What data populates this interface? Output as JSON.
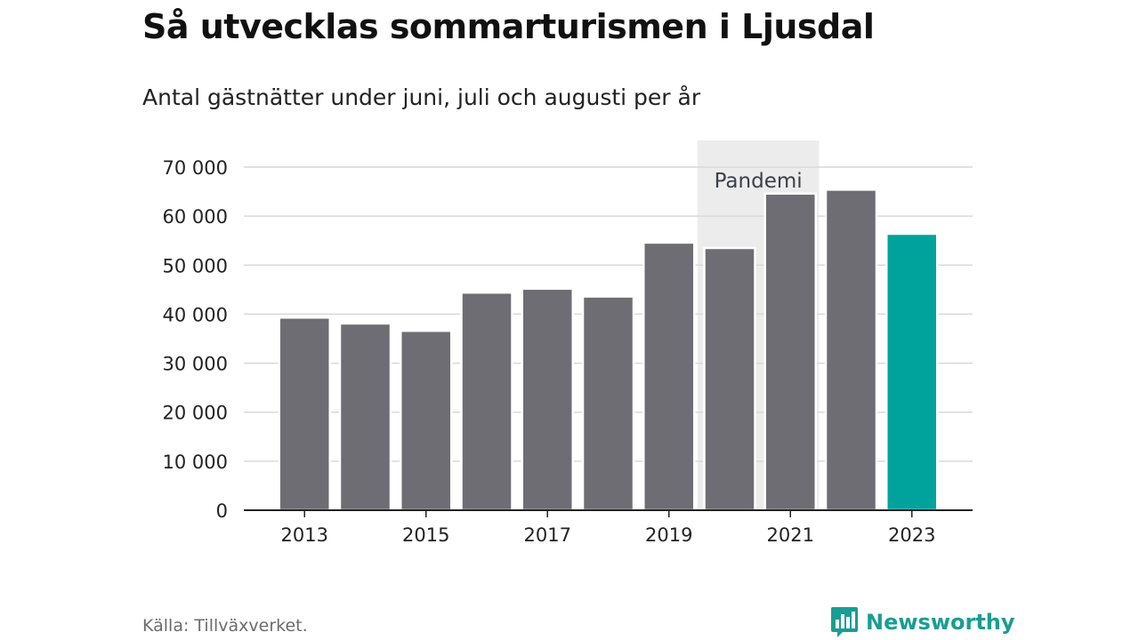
{
  "header": {
    "title": "Så utvecklas sommarturismen i Ljusdal",
    "subtitle": "Antal gästnätter under juni, juli och augusti per år"
  },
  "footer": {
    "source": "Källa: Tillväxverket.",
    "brand": "Newsworthy",
    "brand_icon": "bar-chart-speech-icon"
  },
  "colors": {
    "bar": "#6e6d73",
    "highlight": "#00a39b",
    "band": "#ececec",
    "grid": "#d9d9d9",
    "axis": "#222222"
  },
  "chart_data": {
    "type": "bar",
    "categories": [
      "2013",
      "2014",
      "2015",
      "2016",
      "2017",
      "2018",
      "2019",
      "2020",
      "2021",
      "2022",
      "2023"
    ],
    "values": [
      39300,
      38100,
      36600,
      44400,
      45200,
      43600,
      54600,
      53500,
      64600,
      65400,
      56400
    ],
    "highlight_category": "2023",
    "ylim": [
      0,
      70000
    ],
    "yticks": [
      0,
      10000,
      20000,
      30000,
      40000,
      50000,
      60000,
      70000
    ],
    "ytick_labels": [
      "0",
      "10 000",
      "20 000",
      "30 000",
      "40 000",
      "50 000",
      "60 000",
      "70 000"
    ],
    "xtick_labels": [
      "2013",
      "2015",
      "2017",
      "2019",
      "2021",
      "2023"
    ],
    "grid": true,
    "annotation": {
      "label": "Pandemi",
      "from": "2020",
      "to": "2021"
    }
  }
}
